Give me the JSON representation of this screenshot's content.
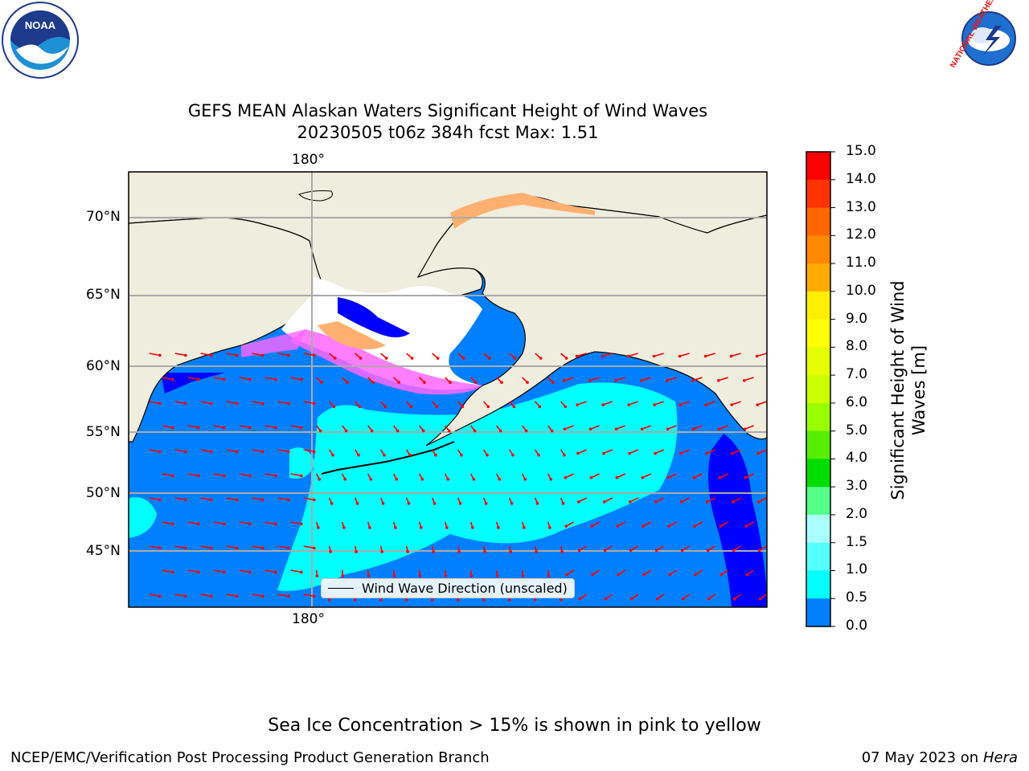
{
  "title": {
    "line1": "GEFS MEAN Alaskan Waters Significant Height of Wind Waves",
    "line2": "20230505 t06z 384h fcst    Max: 1.51"
  },
  "map": {
    "lat_labels": [
      "70°N",
      "65°N",
      "60°N",
      "55°N",
      "50°N",
      "45°N"
    ],
    "lon_label_top": "180°",
    "lon_label_bottom": "180°",
    "legend_label": "Wind Wave Direction (unscaled)",
    "colors": {
      "ocean_low": "#0000ff",
      "ocean_mid": "#0080ff",
      "ocean_cyan": "#00ffff",
      "land": "#efedde",
      "ice_pink": "#ff66ff",
      "ice_orange": "#ffb070",
      "arrows": "#ff0000"
    }
  },
  "colorbar": {
    "label": "Significant Height of Wind Waves [m]",
    "ticks": [
      "15.0",
      "14.0",
      "13.0",
      "12.0",
      "11.0",
      "10.0",
      "9.0",
      "8.0",
      "7.0",
      "6.0",
      "5.0",
      "4.0",
      "3.0",
      "2.0",
      "1.5",
      "1.0",
      "0.5",
      "0.0"
    ],
    "colors": [
      "#ff0000",
      "#ff3300",
      "#ff6600",
      "#ff8800",
      "#ffaa00",
      "#ffee00",
      "#ffff00",
      "#e6ff00",
      "#ccff00",
      "#99ff00",
      "#55ee00",
      "#00dd00",
      "#55ff88",
      "#aaffff",
      "#55ffff",
      "#00ffff",
      "#0080ff",
      "#0000ff"
    ]
  },
  "logos": {
    "noaa_text": "NOAA",
    "nws_text": "NATIONAL WEATHER SERVICE"
  },
  "footer": {
    "note": "Sea Ice Concentration > 15% is shown in pink to yellow",
    "credit_left": "NCEP/EMC/Verification Post Processing Product Generation Branch",
    "credit_date": "07 May 2023 on",
    "credit_machine": "Hera"
  }
}
